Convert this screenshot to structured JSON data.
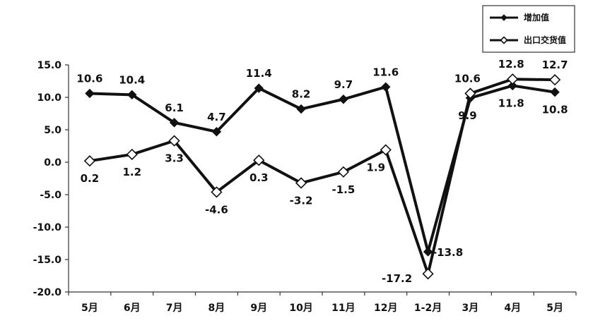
{
  "chart_data": {
    "type": "line",
    "categories": [
      "5月",
      "6月",
      "7月",
      "8月",
      "9月",
      "10月",
      "11月",
      "12月",
      "1-2月",
      "3月",
      "4月",
      "5月"
    ],
    "series": [
      {
        "name": "增加值",
        "marker": "filled-diamond",
        "values": [
          10.6,
          10.4,
          6.1,
          4.7,
          11.4,
          8.2,
          9.7,
          11.6,
          -13.8,
          9.9,
          11.8,
          10.8
        ],
        "labels": [
          "10.6",
          "10.4",
          "6.1",
          "4.7",
          "11.4",
          "8.2",
          "9.7",
          "11.6",
          "-13.8",
          "9.9",
          "11.8",
          "10.8"
        ]
      },
      {
        "name": "出口交货值",
        "marker": "hollow-diamond",
        "values": [
          0.2,
          1.2,
          3.3,
          -4.6,
          0.3,
          -3.2,
          -1.5,
          1.9,
          -17.2,
          10.6,
          12.8,
          12.7
        ],
        "labels": [
          "0.2",
          "1.2",
          "3.3",
          "-4.6",
          "0.3",
          "-3.2",
          "-1.5",
          "1.9",
          "-17.2",
          "10.6",
          "12.8",
          "12.7"
        ]
      }
    ],
    "y_ticks": [
      "15.0",
      "10.0",
      "5.0",
      "0.0",
      "-5.0",
      "-10.0",
      "-15.0",
      "-20.0"
    ],
    "ylim": [
      -20,
      15
    ],
    "grid": false,
    "legend_position": "top-right",
    "line_color": "#111111",
    "title": "",
    "xlabel": "",
    "ylabel": ""
  }
}
